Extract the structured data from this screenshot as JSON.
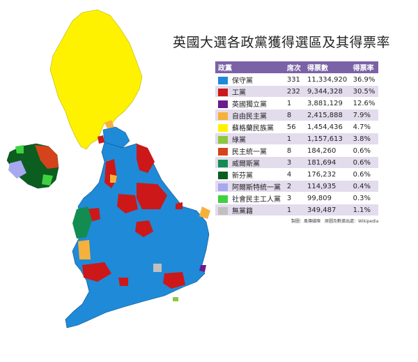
{
  "title": "英國大選各政黨獲得選區及其得票率",
  "legend": {
    "headers": [
      "政黨",
      "席次",
      "得票數",
      "得票率"
    ],
    "rows": [
      {
        "party": "保守黨",
        "seats": "331",
        "votes": "11,334,920",
        "pct": "36.9%",
        "color": "#1f8ad8"
      },
      {
        "party": "工黨",
        "seats": "232",
        "votes": "9,344,328",
        "pct": "30.5%",
        "color": "#cc1818"
      },
      {
        "party": "英國獨立黨",
        "seats": "1",
        "votes": "3,881,129",
        "pct": "12.6%",
        "color": "#6a1b8c"
      },
      {
        "party": "自由民主黨",
        "seats": "8",
        "votes": "2,415,888",
        "pct": "7.9%",
        "color": "#f6b13c"
      },
      {
        "party": "蘇格蘭民族黨",
        "seats": "56",
        "votes": "1,454,436",
        "pct": "4.7%",
        "color": "#fff200"
      },
      {
        "party": "綠黨",
        "seats": "1",
        "votes": "1,157,613",
        "pct": "3.8%",
        "color": "#8dc63f"
      },
      {
        "party": "民主統一黨",
        "seats": "8",
        "votes": "184,260",
        "pct": "0.6%",
        "color": "#d4431b"
      },
      {
        "party": "威爾斯黨",
        "seats": "3",
        "votes": "181,694",
        "pct": "0.6%",
        "color": "#138c52"
      },
      {
        "party": "新芬黨",
        "seats": "4",
        "votes": "176,232",
        "pct": "0.6%",
        "color": "#0b5e1f"
      },
      {
        "party": "阿爾斯特統一黨",
        "seats": "2",
        "votes": "114,935",
        "pct": "0.4%",
        "color": "#a7a8f0"
      },
      {
        "party": "社會民主工人黨",
        "seats": "3",
        "votes": "99,809",
        "pct": "0.3%",
        "color": "#3fd13f"
      },
      {
        "party": "無黨籍",
        "seats": "1",
        "votes": "349,487",
        "pct": "1.1%",
        "color": "#c0c0c0"
      }
    ]
  },
  "source": "製圖：風傳媒陳　原圖及數據出處：Wikipedia"
}
